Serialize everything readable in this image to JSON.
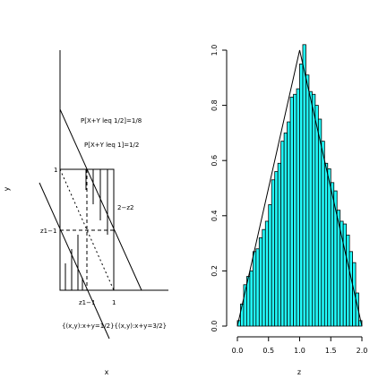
{
  "chart_data": [
    {
      "type": "diagram",
      "title": "",
      "xlabel": "x",
      "ylabel": "y",
      "annotations": {
        "prob_half": "P[X+Y leq 1/2]=1/8",
        "prob_one": "P[X+Y leq 1]=1/2",
        "two_minus_z": "2−z2",
        "tick_one_y": "1",
        "tick_z1_y": "z1−1",
        "tick_z1_x": "z1−1",
        "tick_one_x": "1",
        "set_labels": "{(x,y):x+y=1/2}{(x,y):x+y=3/2}"
      }
    },
    {
      "type": "bar",
      "title": "",
      "xlabel": "z",
      "ylabel": "",
      "xlim": [
        0,
        2
      ],
      "ylim": [
        0,
        1
      ],
      "x_ticks": [
        "0.0",
        "0.5",
        "1.0",
        "1.5",
        "2.0"
      ],
      "y_ticks": [
        "0.0",
        "0.2",
        "0.4",
        "0.6",
        "0.8",
        "1.0"
      ],
      "bin_width": 0.05,
      "bar_color": "#22ffff",
      "values": [
        0.02,
        0.08,
        0.15,
        0.18,
        0.2,
        0.27,
        0.28,
        0.32,
        0.35,
        0.38,
        0.44,
        0.53,
        0.56,
        0.59,
        0.67,
        0.7,
        0.74,
        0.83,
        0.84,
        0.86,
        0.95,
        1.02,
        0.91,
        0.85,
        0.84,
        0.8,
        0.75,
        0.67,
        0.59,
        0.57,
        0.52,
        0.49,
        0.42,
        0.38,
        0.37,
        0.33,
        0.27,
        0.23,
        0.12,
        0.02
      ],
      "density_curve": [
        [
          0,
          0
        ],
        [
          1,
          1
        ],
        [
          2,
          0
        ]
      ]
    }
  ]
}
